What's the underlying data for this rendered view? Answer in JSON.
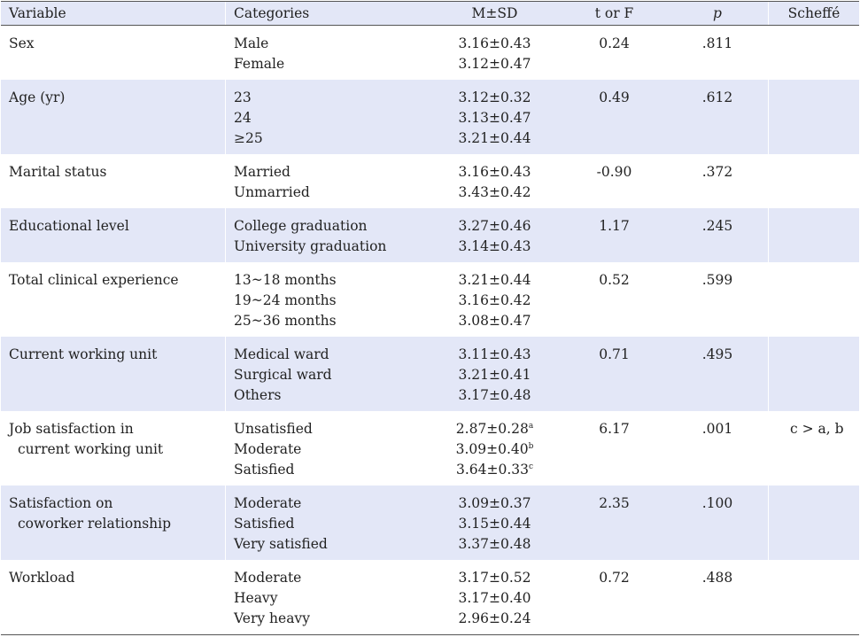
{
  "headers": {
    "variable": "Variable",
    "categories": "Categories",
    "msd": "M±SD",
    "tf": "t or F",
    "p": "p",
    "scheffe": "Scheffé"
  },
  "rows": [
    {
      "variable": [
        "Sex"
      ],
      "categories": [
        "Male",
        "Female"
      ],
      "msd": [
        [
          "3.16±0.43",
          ""
        ],
        [
          "3.12±0.47",
          ""
        ]
      ],
      "tf": "0.24",
      "p": ".811",
      "scheffe": ""
    },
    {
      "variable": [
        "Age (yr)"
      ],
      "categories": [
        "23",
        "24",
        "≥25"
      ],
      "msd": [
        [
          "3.12±0.32",
          ""
        ],
        [
          "3.13±0.47",
          ""
        ],
        [
          "3.21±0.44",
          ""
        ]
      ],
      "tf": "0.49",
      "p": ".612",
      "scheffe": ""
    },
    {
      "variable": [
        "Marital status"
      ],
      "categories": [
        "Married",
        "Unmarried"
      ],
      "msd": [
        [
          "3.16±0.43",
          ""
        ],
        [
          "3.43±0.42",
          ""
        ]
      ],
      "tf": "-0.90",
      "p": ".372",
      "scheffe": ""
    },
    {
      "variable": [
        "Educational level"
      ],
      "categories": [
        "College graduation",
        "University graduation"
      ],
      "msd": [
        [
          "3.27±0.46",
          ""
        ],
        [
          "3.14±0.43",
          ""
        ]
      ],
      "tf": "1.17",
      "p": ".245",
      "scheffe": ""
    },
    {
      "variable": [
        "Total clinical experience"
      ],
      "categories": [
        "13~18 months",
        "19~24 months",
        "25~36 months"
      ],
      "msd": [
        [
          "3.21±0.44",
          ""
        ],
        [
          "3.16±0.42",
          ""
        ],
        [
          "3.08±0.47",
          ""
        ]
      ],
      "tf": "0.52",
      "p": ".599",
      "scheffe": ""
    },
    {
      "variable": [
        "Current working unit"
      ],
      "categories": [
        "Medical ward",
        "Surgical ward",
        "Others"
      ],
      "msd": [
        [
          "3.11±0.43",
          ""
        ],
        [
          "3.21±0.41",
          ""
        ],
        [
          "3.17±0.48",
          ""
        ]
      ],
      "tf": "0.71",
      "p": ".495",
      "scheffe": ""
    },
    {
      "variable": [
        "Job satisfaction in",
        "current working unit"
      ],
      "categories": [
        "Unsatisfied",
        "Moderate",
        "Satisfied"
      ],
      "msd": [
        [
          "2.87±0.28",
          "a"
        ],
        [
          "3.09±0.40",
          "b"
        ],
        [
          "3.64±0.33",
          "c"
        ]
      ],
      "tf": "6.17",
      "p": ".001",
      "scheffe": "c > a, b"
    },
    {
      "variable": [
        "Satisfaction on",
        "coworker relationship"
      ],
      "categories": [
        "Moderate",
        "Satisfied",
        "Very satisfied"
      ],
      "msd": [
        [
          "3.09±0.37",
          ""
        ],
        [
          "3.15±0.44",
          ""
        ],
        [
          "3.37±0.48",
          ""
        ]
      ],
      "tf": "2.35",
      "p": ".100",
      "scheffe": ""
    },
    {
      "variable": [
        "Workload"
      ],
      "categories": [
        "Moderate",
        "Heavy",
        "Very heavy"
      ],
      "msd": [
        [
          "3.17±0.52",
          ""
        ],
        [
          "3.17±0.40",
          ""
        ],
        [
          "2.96±0.24",
          ""
        ]
      ],
      "tf": "0.72",
      "p": ".488",
      "scheffe": ""
    }
  ]
}
